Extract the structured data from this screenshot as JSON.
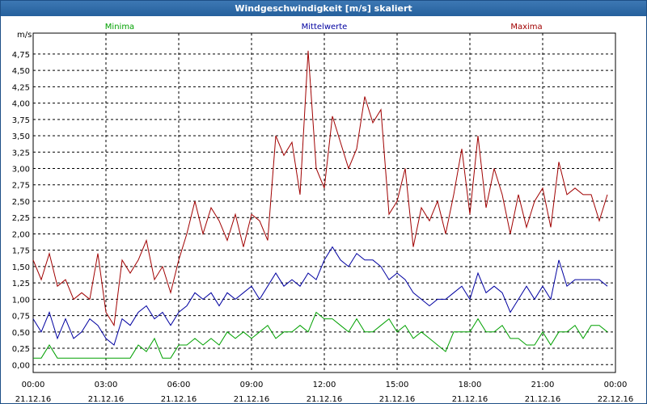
{
  "chart_data": {
    "type": "line",
    "title": "Windgeschwindigkeit [m/s] skaliert",
    "y_label": "m/s",
    "x": [
      0,
      20,
      40,
      60,
      80,
      100,
      120,
      140,
      160,
      180,
      200,
      220,
      240,
      260,
      280,
      300,
      320,
      340,
      360,
      380,
      400,
      420,
      440,
      460,
      480,
      500,
      520,
      540,
      560,
      580,
      600,
      620,
      640,
      660,
      680,
      700,
      720,
      740,
      760,
      780,
      800,
      820,
      840,
      860,
      880,
      900,
      920,
      940,
      960,
      980,
      1000,
      1020,
      1040,
      1060,
      1080,
      1100,
      1120,
      1140,
      1160,
      1180,
      1200,
      1220,
      1240,
      1260,
      1280,
      1300,
      1320,
      1340,
      1360,
      1380,
      1400,
      1420
    ],
    "xlim": [
      0,
      1440
    ],
    "xticks": [
      {
        "value": 0,
        "label": "00:00 21.12.16"
      },
      {
        "value": 180,
        "label": "03:00 21.12.16"
      },
      {
        "value": 360,
        "label": "06:00 21.12.16"
      },
      {
        "value": 540,
        "label": "09:00 21.12.16"
      },
      {
        "value": 720,
        "label": "12:00 21.12.16"
      },
      {
        "value": 900,
        "label": "15:00 21.12.16"
      },
      {
        "value": 1080,
        "label": "18:00 21.12.16"
      },
      {
        "value": 1260,
        "label": "21:00 21.12.16"
      },
      {
        "value": 1440,
        "label": "00:00 22.12.16"
      }
    ],
    "ylim": [
      -0.12,
      5.07
    ],
    "yticks": [
      {
        "value": 0,
        "label": "0,00"
      },
      {
        "value": 0.25,
        "label": "0,25"
      },
      {
        "value": 0.5,
        "label": "0,50"
      },
      {
        "value": 0.75,
        "label": "0,75"
      },
      {
        "value": 1,
        "label": "1,00"
      },
      {
        "value": 1.25,
        "label": "1,25"
      },
      {
        "value": 1.5,
        "label": "1,50"
      },
      {
        "value": 1.75,
        "label": "1,75"
      },
      {
        "value": 2,
        "label": "2,00"
      },
      {
        "value": 2.25,
        "label": "2,25"
      },
      {
        "value": 2.5,
        "label": "2,50"
      },
      {
        "value": 2.75,
        "label": "2,75"
      },
      {
        "value": 3,
        "label": "3,00"
      },
      {
        "value": 3.25,
        "label": "3,25"
      },
      {
        "value": 3.5,
        "label": "3,50"
      },
      {
        "value": 3.75,
        "label": "3,75"
      },
      {
        "value": 4,
        "label": "4,00"
      },
      {
        "value": 4.25,
        "label": "4,25"
      },
      {
        "value": 4.5,
        "label": "4,50"
      },
      {
        "value": 4.75,
        "label": "4,75"
      }
    ],
    "grid": true,
    "series": [
      {
        "name": "Minima",
        "color": "#00a000",
        "values": [
          0.1,
          0.1,
          0.3,
          0.1,
          0.1,
          0.1,
          0.1,
          0.1,
          0.1,
          0.1,
          0.1,
          0.1,
          0.1,
          0.3,
          0.2,
          0.4,
          0.1,
          0.1,
          0.3,
          0.3,
          0.4,
          0.3,
          0.4,
          0.3,
          0.5,
          0.4,
          0.5,
          0.4,
          0.5,
          0.6,
          0.4,
          0.5,
          0.5,
          0.6,
          0.5,
          0.8,
          0.7,
          0.7,
          0.6,
          0.5,
          0.7,
          0.5,
          0.5,
          0.6,
          0.7,
          0.5,
          0.6,
          0.4,
          0.5,
          0.4,
          0.3,
          0.2,
          0.5,
          0.5,
          0.5,
          0.7,
          0.5,
          0.5,
          0.6,
          0.4,
          0.4,
          0.3,
          0.3,
          0.5,
          0.3,
          0.5,
          0.5,
          0.6,
          0.4,
          0.6,
          0.6,
          0.5
        ]
      },
      {
        "name": "Mittelwerte",
        "color": "#0000a0",
        "values": [
          0.7,
          0.5,
          0.8,
          0.4,
          0.7,
          0.4,
          0.5,
          0.7,
          0.6,
          0.4,
          0.3,
          0.7,
          0.6,
          0.8,
          0.9,
          0.7,
          0.8,
          0.6,
          0.8,
          0.9,
          1.1,
          1.0,
          1.1,
          0.9,
          1.1,
          1.0,
          1.1,
          1.2,
          1.0,
          1.2,
          1.4,
          1.2,
          1.3,
          1.2,
          1.4,
          1.3,
          1.6,
          1.8,
          1.6,
          1.5,
          1.7,
          1.6,
          1.6,
          1.5,
          1.3,
          1.4,
          1.3,
          1.1,
          1.0,
          0.9,
          1.0,
          1.0,
          1.1,
          1.2,
          1.0,
          1.4,
          1.1,
          1.2,
          1.1,
          0.8,
          1.0,
          1.2,
          1.0,
          1.2,
          1.0,
          1.6,
          1.2,
          1.3,
          1.3,
          1.3,
          1.3,
          1.2
        ]
      },
      {
        "name": "Maxima",
        "color": "#a00000",
        "values": [
          1.6,
          1.3,
          1.7,
          1.2,
          1.3,
          1.0,
          1.1,
          1.0,
          1.7,
          0.8,
          0.6,
          1.6,
          1.4,
          1.6,
          1.9,
          1.3,
          1.5,
          1.1,
          1.6,
          2.0,
          2.5,
          2.0,
          2.4,
          2.2,
          1.9,
          2.3,
          1.8,
          2.3,
          2.2,
          1.9,
          3.5,
          3.2,
          3.4,
          2.6,
          4.8,
          3.0,
          2.7,
          3.8,
          3.4,
          3.0,
          3.3,
          4.1,
          3.7,
          3.9,
          2.3,
          2.5,
          3.0,
          1.8,
          2.4,
          2.2,
          2.5,
          2.0,
          2.6,
          3.3,
          2.3,
          3.5,
          2.4,
          3.0,
          2.6,
          2.0,
          2.6,
          2.1,
          2.5,
          2.7,
          2.1,
          3.1,
          2.6,
          2.7,
          2.6,
          2.6,
          2.2,
          2.6
        ]
      }
    ]
  }
}
